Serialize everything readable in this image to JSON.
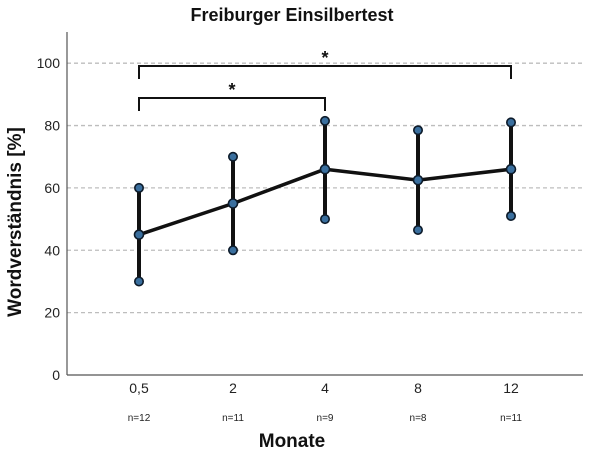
{
  "chart_data": {
    "type": "line",
    "title": "Freiburger Einsilbertest",
    "xlabel": "Monate",
    "ylabel": "Wordverständnis [%]",
    "categories": [
      "0,5",
      "2",
      "4",
      "8",
      "12"
    ],
    "sample_sizes": [
      "n=12",
      "n=11",
      "n=9",
      "n=8",
      "n=11"
    ],
    "ylim": [
      0,
      110
    ],
    "yticks": [
      0,
      20,
      40,
      60,
      80,
      100
    ],
    "grid": "horizontal dashed",
    "series": [
      {
        "values": [
          45,
          55,
          66,
          62.5,
          66
        ],
        "error_upper": [
          60,
          70,
          81.5,
          78.5,
          81
        ],
        "error_lower": [
          30,
          40,
          50,
          46.5,
          51
        ]
      }
    ],
    "annotations": [
      {
        "type": "significance",
        "from": "0,5",
        "to": "4",
        "label": "*"
      },
      {
        "type": "significance",
        "from": "0,5",
        "to": "12",
        "label": "*"
      }
    ],
    "colors": {
      "line": "#111111",
      "marker": "#3a6f9e",
      "marker_edge": "#0d1b2a"
    }
  }
}
